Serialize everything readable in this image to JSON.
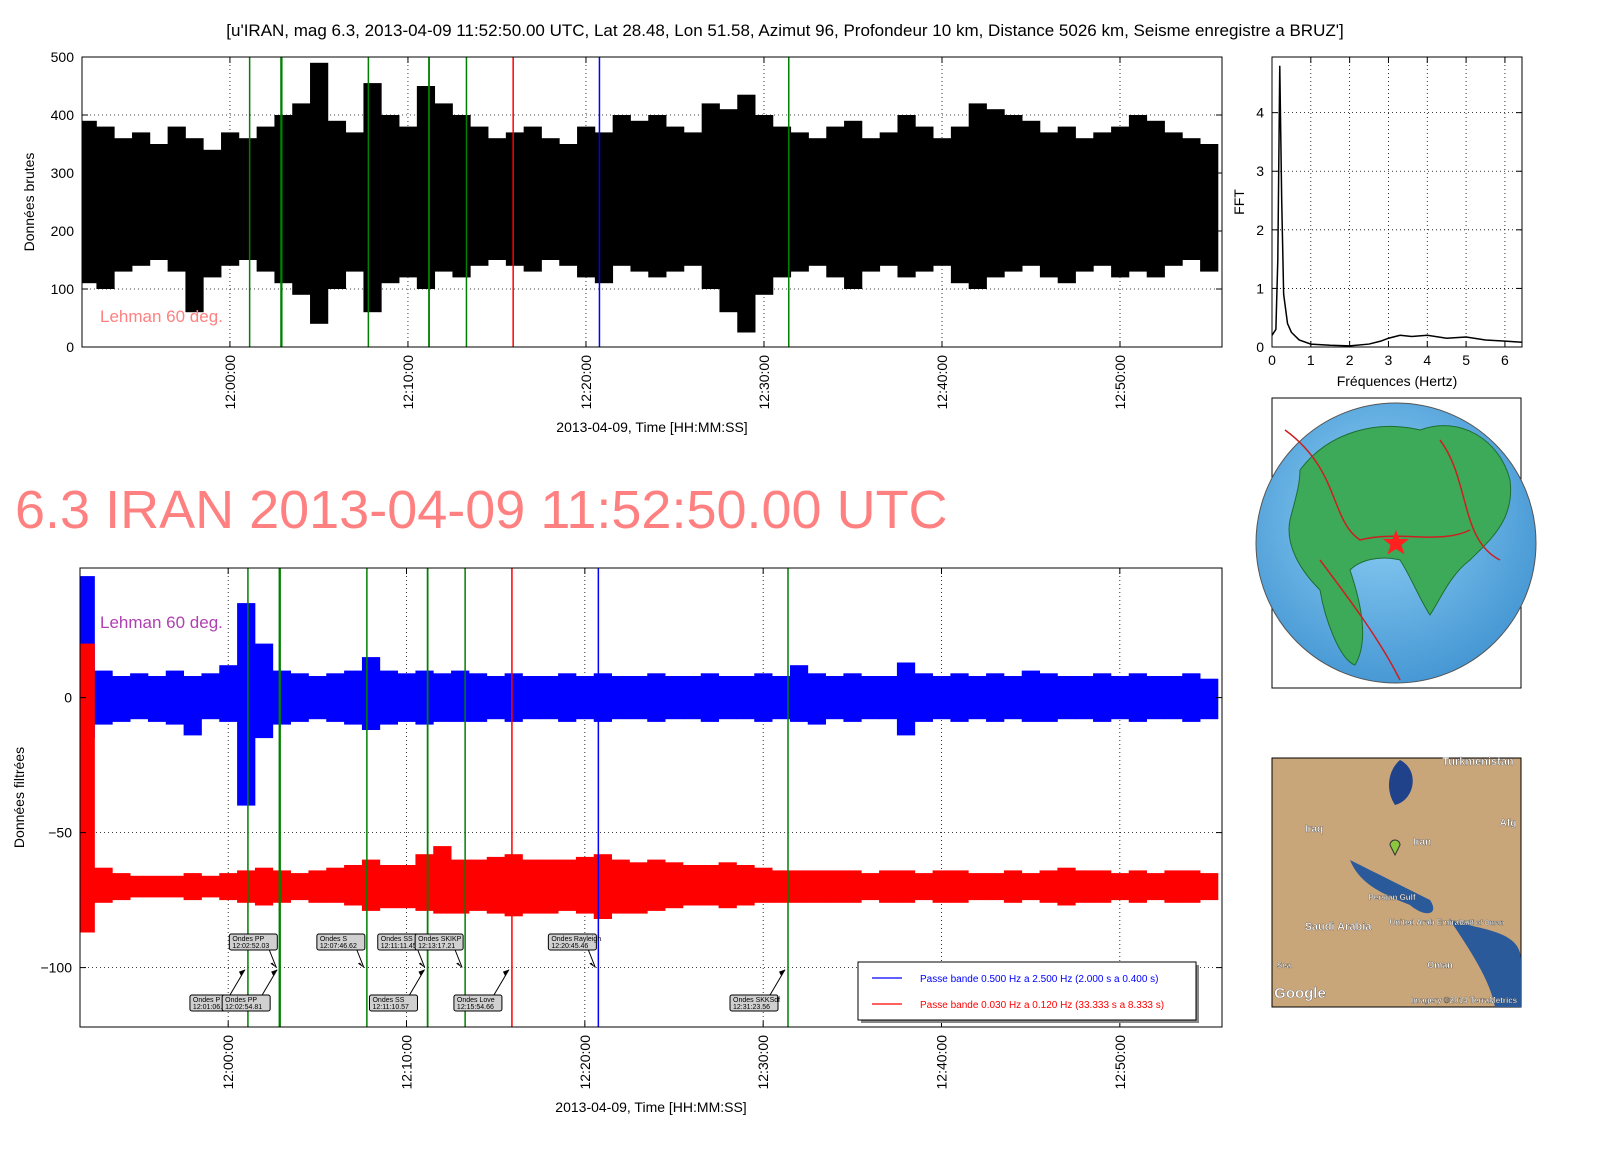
{
  "header": "[u'IRAN, mag 6.3, 2013-04-09 11:52:50.00 UTC, Lat 28.48, Lon 51.58, Azimut  96, Profondeur 10 km, Distance  5026 km, Seisme enregistre a BRUZ']",
  "headline": "6.3 IRAN 2013-04-09 11:52:50.00 UTC",
  "map": {
    "labels": [
      "Turkmenistan",
      "Iraq",
      "Iran",
      "Afg",
      "Persian Gulf",
      "Saudi Arabia",
      "United Arab Emirates",
      "Gulf of Oman",
      "Oman",
      "Sea",
      "Google",
      "Imagery ©2014 TerraMetrics"
    ]
  },
  "chart_data": [
    {
      "type": "range",
      "ylabel": "Données brutes",
      "xlabel": "2013-04-09, Time [HH:MM:SS]",
      "annotation": "Lehman 60 deg.",
      "annotation_color": "#ff8080",
      "grid": true,
      "xlim": [
        -8.31,
        55.73
      ],
      "ylim": [
        0,
        500
      ],
      "xticks": [
        {
          "value": 0,
          "label": "12:00:00"
        },
        {
          "value": 10,
          "label": "12:10:00"
        },
        {
          "value": 20,
          "label": "12:20:00"
        },
        {
          "value": 30,
          "label": "12:30:00"
        },
        {
          "value": 40,
          "label": "12:40:00"
        },
        {
          "value": 50,
          "label": "12:50:00"
        }
      ],
      "yticks": [
        0,
        100,
        200,
        300,
        400,
        500
      ],
      "x": [
        -8,
        -7,
        -6,
        -5,
        -4,
        -3,
        -2,
        -1,
        0,
        1,
        2,
        3,
        4,
        5,
        6,
        7,
        8,
        9,
        10,
        11,
        12,
        13,
        14,
        15,
        16,
        17,
        18,
        19,
        20,
        21,
        22,
        23,
        24,
        25,
        26,
        27,
        28,
        29,
        30,
        31,
        32,
        33,
        34,
        35,
        36,
        37,
        38,
        39,
        40,
        41,
        42,
        43,
        44,
        45,
        46,
        47,
        48,
        49,
        50,
        51,
        52,
        53,
        54,
        55
      ],
      "series": [
        {
          "color": "#000000",
          "high": [
            390,
            380,
            360,
            370,
            350,
            380,
            360,
            340,
            370,
            360,
            380,
            400,
            420,
            490,
            390,
            370,
            455,
            400,
            380,
            450,
            420,
            400,
            380,
            360,
            370,
            380,
            360,
            350,
            380,
            370,
            400,
            390,
            400,
            380,
            370,
            420,
            410,
            435,
            400,
            380,
            370,
            360,
            380,
            390,
            360,
            370,
            400,
            380,
            360,
            380,
            420,
            410,
            400,
            390,
            370,
            380,
            360,
            370,
            380,
            400,
            390,
            370,
            360,
            350
          ],
          "low": [
            110,
            100,
            130,
            140,
            150,
            130,
            60,
            120,
            140,
            150,
            130,
            110,
            90,
            40,
            100,
            130,
            60,
            110,
            120,
            100,
            130,
            120,
            140,
            150,
            140,
            130,
            150,
            140,
            120,
            110,
            140,
            130,
            120,
            130,
            140,
            100,
            60,
            25,
            90,
            120,
            130,
            140,
            120,
            100,
            130,
            140,
            120,
            130,
            140,
            110,
            100,
            120,
            130,
            140,
            120,
            110,
            130,
            140,
            120,
            130,
            120,
            140,
            150,
            130
          ]
        }
      ],
      "markers": [
        {
          "x": 1.107,
          "color": "#008000"
        },
        {
          "x": 2.867,
          "color": "#008000"
        },
        {
          "x": 2.914,
          "color": "#008000"
        },
        {
          "x": 7.777,
          "color": "#008000"
        },
        {
          "x": 11.176,
          "color": "#008000"
        },
        {
          "x": 11.191,
          "color": "#008000"
        },
        {
          "x": 13.287,
          "color": "#008000"
        },
        {
          "x": 15.911,
          "color": "#ff0000"
        },
        {
          "x": 20.758,
          "color": "#0000ff"
        },
        {
          "x": 31.393,
          "color": "#008000"
        }
      ]
    },
    {
      "type": "line",
      "ylabel": "FFT",
      "xlabel": "Fréquences (Hertz)",
      "grid": true,
      "xlim": [
        0,
        6.44
      ],
      "ylim": [
        0,
        4.95
      ],
      "xticks": [
        0,
        1,
        2,
        3,
        4,
        5,
        6
      ],
      "yticks": [
        0,
        1,
        2,
        3,
        4
      ],
      "x": [
        0,
        0.1,
        0.15,
        0.2,
        0.25,
        0.3,
        0.4,
        0.5,
        0.7,
        1,
        1.5,
        2,
        2.5,
        2.8,
        3,
        3.3,
        3.6,
        4,
        4.5,
        5,
        5.5,
        6,
        6.44
      ],
      "series": [
        {
          "color": "#000000",
          "values": [
            0.2,
            0.3,
            1.5,
            4.8,
            2.5,
            0.9,
            0.4,
            0.25,
            0.12,
            0.05,
            0.03,
            0.02,
            0.05,
            0.1,
            0.15,
            0.2,
            0.18,
            0.2,
            0.15,
            0.17,
            0.12,
            0.1,
            0.08
          ]
        }
      ]
    },
    {
      "type": "range",
      "ylabel": "Données filtrées",
      "xlabel": "2013-04-09, Time [HH:MM:SS]",
      "annotation": "Lehman 60 deg.",
      "annotation_color": "#b040b0",
      "grid": true,
      "legend": "lower right",
      "xlim": [
        -8.31,
        55.73
      ],
      "ylim": [
        -122,
        48
      ],
      "xticks": [
        {
          "value": 0,
          "label": "12:00:00"
        },
        {
          "value": 10,
          "label": "12:10:00"
        },
        {
          "value": 20,
          "label": "12:20:00"
        },
        {
          "value": 30,
          "label": "12:30:00"
        },
        {
          "value": 40,
          "label": "12:40:00"
        },
        {
          "value": 50,
          "label": "12:50:00"
        }
      ],
      "yticks": [
        {
          "value": -100,
          "label": "−100"
        },
        {
          "value": -50,
          "label": "−50"
        },
        0
      ],
      "x": [
        -8,
        -7,
        -6,
        -5,
        -4,
        -3,
        -2,
        -1,
        0,
        1,
        2,
        3,
        4,
        5,
        6,
        7,
        8,
        9,
        10,
        11,
        12,
        13,
        14,
        15,
        16,
        17,
        18,
        19,
        20,
        21,
        22,
        23,
        24,
        25,
        26,
        27,
        28,
        29,
        30,
        31,
        32,
        33,
        34,
        35,
        36,
        37,
        38,
        39,
        40,
        41,
        42,
        43,
        44,
        45,
        46,
        47,
        48,
        49,
        50,
        51,
        52,
        53,
        54,
        55
      ],
      "series": [
        {
          "name": "Passe bande 0.500 Hz a 2.500 Hz (2.000 s a 0.400 s)",
          "color": "#0000ff",
          "high": [
            45,
            10,
            8,
            9,
            8,
            10,
            8,
            9,
            12,
            35,
            20,
            10,
            9,
            8,
            9,
            10,
            15,
            10,
            9,
            10,
            9,
            10,
            9,
            8,
            9,
            8,
            8,
            9,
            8,
            9,
            8,
            8,
            9,
            8,
            8,
            9,
            8,
            8,
            9,
            8,
            12,
            9,
            8,
            9,
            8,
            8,
            13,
            9,
            8,
            9,
            8,
            9,
            8,
            10,
            9,
            8,
            8,
            9,
            8,
            9,
            8,
            8,
            9,
            7
          ],
          "low": [
            -15,
            -10,
            -9,
            -8,
            -9,
            -10,
            -14,
            -8,
            -9,
            -40,
            -15,
            -10,
            -9,
            -8,
            -9,
            -10,
            -12,
            -10,
            -9,
            -10,
            -9,
            -9,
            -9,
            -8,
            -9,
            -8,
            -8,
            -9,
            -8,
            -9,
            -8,
            -8,
            -9,
            -8,
            -8,
            -9,
            -8,
            -8,
            -9,
            -8,
            -9,
            -10,
            -8,
            -9,
            -8,
            -8,
            -14,
            -9,
            -8,
            -9,
            -8,
            -9,
            -8,
            -9,
            -9,
            -8,
            -8,
            -9,
            -8,
            -9,
            -8,
            -8,
            -9,
            -8
          ]
        },
        {
          "name": "Passe bande 0.030 Hz a 0.120 Hz (33.333 s a 8.333 s)",
          "color": "#ff0000",
          "high": [
            20,
            -63,
            -65,
            -66,
            -66,
            -66,
            -65,
            -66,
            -65,
            -64,
            -63,
            -64,
            -65,
            -64,
            -63,
            -62,
            -60,
            -62,
            -62,
            -58,
            -55,
            -60,
            -60,
            -59,
            -58,
            -60,
            -60,
            -60,
            -59,
            -58,
            -60,
            -61,
            -60,
            -61,
            -62,
            -62,
            -61,
            -62,
            -63,
            -64,
            -64,
            -64,
            -64,
            -64,
            -65,
            -64,
            -64,
            -65,
            -64,
            -64,
            -65,
            -65,
            -64,
            -65,
            -64,
            -63,
            -64,
            -64,
            -65,
            -64,
            -65,
            -64,
            -64,
            -65
          ],
          "low": [
            -87,
            -76,
            -75,
            -74,
            -74,
            -74,
            -75,
            -74,
            -75,
            -76,
            -77,
            -76,
            -75,
            -76,
            -76,
            -77,
            -79,
            -78,
            -78,
            -79,
            -80,
            -80,
            -79,
            -80,
            -81,
            -80,
            -80,
            -79,
            -80,
            -82,
            -80,
            -80,
            -79,
            -78,
            -77,
            -77,
            -78,
            -77,
            -76,
            -76,
            -76,
            -76,
            -76,
            -76,
            -75,
            -76,
            -76,
            -75,
            -76,
            -76,
            -75,
            -75,
            -76,
            -75,
            -76,
            -77,
            -76,
            -76,
            -75,
            -76,
            -75,
            -76,
            -76,
            -75
          ]
        }
      ],
      "arrow_at": -100,
      "markers": [
        {
          "x": 1.107,
          "color": "#008000",
          "name": "Ondes P",
          "time": "12:01:06.44"
        },
        {
          "x": 2.867,
          "color": "#008000",
          "name": "Ondes PP",
          "time": "12:02:52.03"
        },
        {
          "x": 2.914,
          "color": "#008000",
          "name": "Ondes PP",
          "time": "12:02:54.81"
        },
        {
          "x": 7.777,
          "color": "#008000",
          "name": "Ondes S",
          "time": "12:07:46.62"
        },
        {
          "x": 11.176,
          "color": "#008000",
          "name": "Ondes SS",
          "time": "12:11:10.57"
        },
        {
          "x": 11.191,
          "color": "#008000",
          "name": "Ondes SS",
          "time": "12:11:11.45"
        },
        {
          "x": 13.287,
          "color": "#008000",
          "name": "Ondes SKIKP",
          "time": "12:13:17.21"
        },
        {
          "x": 15.911,
          "color": "#ff0000",
          "name": "Ondes Love",
          "time": "12:15:54.66"
        },
        {
          "x": 20.758,
          "color": "#0000ff",
          "name": "Ondes Rayleigh",
          "time": "12:20:45.46"
        },
        {
          "x": 31.393,
          "color": "#008000",
          "name": "Ondes SKKSdf",
          "time": "12:31:23.56"
        }
      ]
    }
  ]
}
